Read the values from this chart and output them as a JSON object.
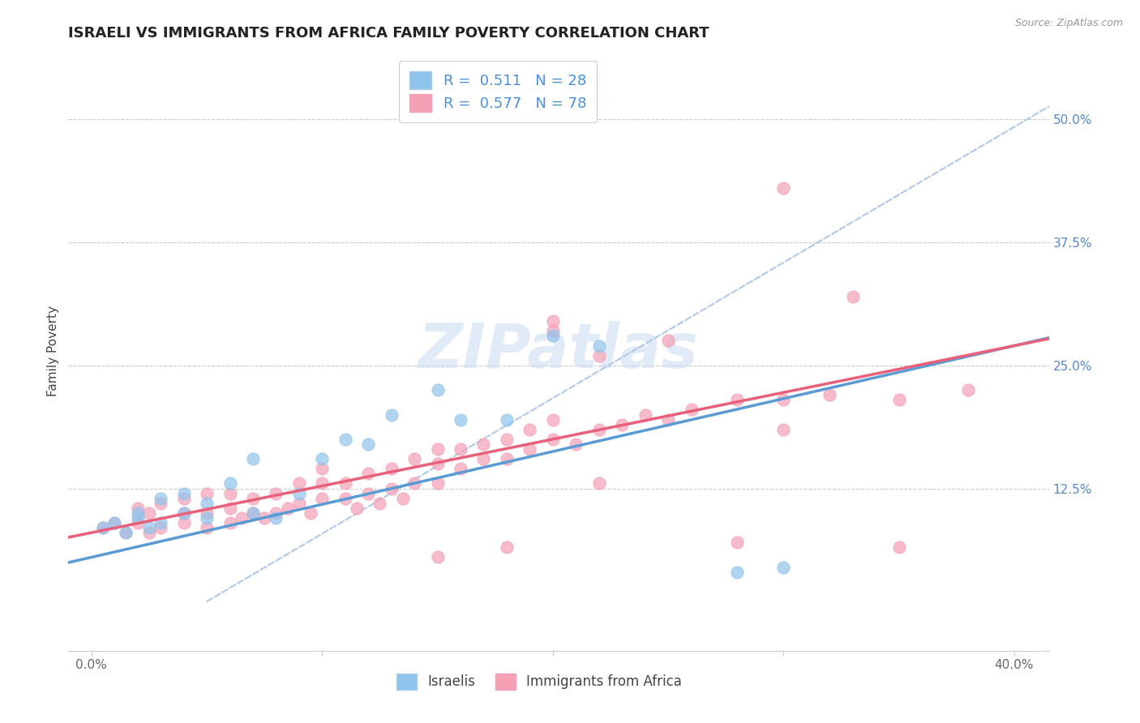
{
  "title": "ISRAELI VS IMMIGRANTS FROM AFRICA FAMILY POVERTY CORRELATION CHART",
  "source_text": "Source: ZipAtlas.com",
  "ylabel": "Family Poverty",
  "xlabel": "",
  "xlim": [
    0.0,
    0.4
  ],
  "ylim": [
    -0.02,
    0.55
  ],
  "xtick_labels": [
    "0.0%",
    "",
    "",
    "",
    "40.0%"
  ],
  "xtick_values": [
    0.0,
    0.1,
    0.2,
    0.3,
    0.4
  ],
  "ytick_labels": [
    "12.5%",
    "25.0%",
    "37.5%",
    "50.0%"
  ],
  "ytick_values": [
    0.125,
    0.25,
    0.375,
    0.5
  ],
  "watermark": "ZIPatlas",
  "israelis_color": "#91C4EC",
  "africa_color": "#F5A0B5",
  "israelis_line_color": "#5B9BD5",
  "africa_line_color": "#E8607A",
  "ref_line_color": "#B0C8E8",
  "legend_R1": "R =  0.511",
  "legend_N1": "N = 28",
  "legend_R2": "R =  0.577",
  "legend_N2": "N = 78",
  "legend_label1": "Israelis",
  "legend_label2": "Immigrants from Africa",
  "israelis_x": [
    0.005,
    0.01,
    0.015,
    0.02,
    0.02,
    0.025,
    0.03,
    0.03,
    0.04,
    0.04,
    0.05,
    0.05,
    0.06,
    0.07,
    0.08,
    0.09,
    0.1,
    0.11,
    0.13,
    0.15,
    0.16,
    0.18,
    0.2,
    0.22,
    0.28,
    0.3,
    0.07,
    0.12
  ],
  "israelis_y": [
    0.085,
    0.09,
    0.08,
    0.095,
    0.1,
    0.085,
    0.09,
    0.115,
    0.1,
    0.12,
    0.095,
    0.11,
    0.13,
    0.1,
    0.095,
    0.12,
    0.155,
    0.175,
    0.2,
    0.225,
    0.195,
    0.195,
    0.28,
    0.27,
    0.04,
    0.045,
    0.155,
    0.17
  ],
  "africa_x": [
    0.005,
    0.01,
    0.015,
    0.02,
    0.02,
    0.025,
    0.025,
    0.03,
    0.03,
    0.04,
    0.04,
    0.04,
    0.05,
    0.05,
    0.05,
    0.06,
    0.06,
    0.06,
    0.065,
    0.07,
    0.07,
    0.075,
    0.08,
    0.08,
    0.085,
    0.09,
    0.09,
    0.095,
    0.1,
    0.1,
    0.1,
    0.11,
    0.11,
    0.115,
    0.12,
    0.12,
    0.125,
    0.13,
    0.13,
    0.135,
    0.14,
    0.14,
    0.15,
    0.15,
    0.15,
    0.16,
    0.16,
    0.17,
    0.17,
    0.18,
    0.18,
    0.19,
    0.19,
    0.2,
    0.2,
    0.21,
    0.22,
    0.23,
    0.24,
    0.25,
    0.26,
    0.28,
    0.3,
    0.32,
    0.35,
    0.38,
    0.2,
    0.25,
    0.3,
    0.33,
    0.28,
    0.35,
    0.2,
    0.22,
    0.3,
    0.18,
    0.15,
    0.22
  ],
  "africa_y": [
    0.085,
    0.09,
    0.08,
    0.09,
    0.105,
    0.08,
    0.1,
    0.085,
    0.11,
    0.09,
    0.1,
    0.115,
    0.085,
    0.1,
    0.12,
    0.09,
    0.105,
    0.12,
    0.095,
    0.1,
    0.115,
    0.095,
    0.1,
    0.12,
    0.105,
    0.11,
    0.13,
    0.1,
    0.115,
    0.13,
    0.145,
    0.115,
    0.13,
    0.105,
    0.12,
    0.14,
    0.11,
    0.125,
    0.145,
    0.115,
    0.13,
    0.155,
    0.13,
    0.15,
    0.165,
    0.145,
    0.165,
    0.155,
    0.17,
    0.155,
    0.175,
    0.165,
    0.185,
    0.175,
    0.195,
    0.17,
    0.185,
    0.19,
    0.2,
    0.195,
    0.205,
    0.215,
    0.215,
    0.22,
    0.215,
    0.225,
    0.295,
    0.275,
    0.43,
    0.32,
    0.07,
    0.065,
    0.285,
    0.26,
    0.185,
    0.065,
    0.055,
    0.13
  ],
  "title_fontsize": 13,
  "axis_label_fontsize": 11,
  "tick_fontsize": 11,
  "legend_fontsize": 13
}
